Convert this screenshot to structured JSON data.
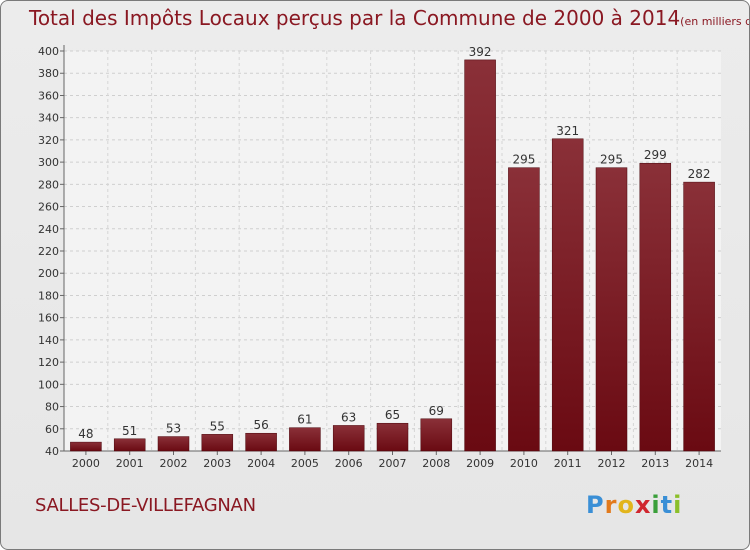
{
  "chart_data": {
    "type": "bar",
    "title": "Total des Impôts Locaux perçus par la Commune de 2000 à 2014",
    "unit_note": "(en milliers d'€)",
    "categories": [
      "2000",
      "2001",
      "2002",
      "2003",
      "2004",
      "2005",
      "2006",
      "2007",
      "2008",
      "2009",
      "2010",
      "2011",
      "2012",
      "2013",
      "2014"
    ],
    "values": [
      48,
      51,
      53,
      55,
      56,
      61,
      63,
      65,
      69,
      392,
      295,
      321,
      295,
      299,
      282
    ],
    "ylim": [
      40,
      400
    ],
    "yticks": [
      40,
      60,
      80,
      100,
      120,
      140,
      160,
      180,
      200,
      220,
      240,
      260,
      280,
      300,
      320,
      340,
      360,
      380,
      400
    ],
    "xlabel": "",
    "ylabel": "",
    "grid": true,
    "bar_color": "#6a0a12",
    "bar_color_light": "#8a3038"
  },
  "commune": "SALLES-DE-VILLEFAGNAN",
  "logo": {
    "letters": [
      "P",
      "r",
      "o",
      "x",
      "i",
      "t",
      "i"
    ],
    "colors": [
      "#3a8fd6",
      "#e27a1c",
      "#e2b51c",
      "#d0262e",
      "#3a9f3a",
      "#3a8fd6",
      "#8bbf2a"
    ]
  }
}
